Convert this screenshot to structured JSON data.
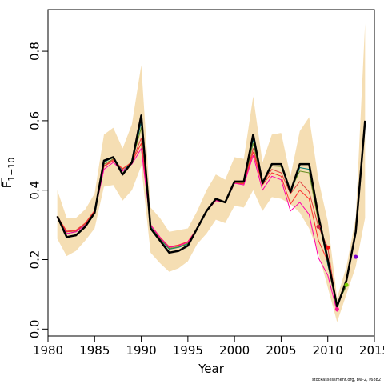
{
  "chart_data": {
    "type": "line",
    "xlabel": "Year",
    "ylabel": "F",
    "ylabel_sub": "1−10",
    "xlim": [
      1980,
      2015
    ],
    "ylim": [
      -0.02,
      0.92
    ],
    "xticks": [
      1980,
      1985,
      1990,
      1995,
      2000,
      2005,
      2010,
      2015
    ],
    "yticks": [
      0.0,
      0.2,
      0.4,
      0.6,
      0.8
    ],
    "ytick_labels": [
      "0.0",
      "0.2",
      "0.4",
      "0.6",
      "0.8"
    ],
    "band": {
      "color": "#f5deb3",
      "x": [
        1981,
        1982,
        1983,
        1984,
        1985,
        1986,
        1987,
        1988,
        1989,
        1990,
        1991,
        1992,
        1993,
        1994,
        1995,
        1996,
        1997,
        1998,
        1999,
        2000,
        2001,
        2002,
        2003,
        2004,
        2005,
        2006,
        2007,
        2008,
        2009,
        2010,
        2011,
        2012,
        2013,
        2014
      ],
      "lower": [
        0.26,
        0.21,
        0.225,
        0.255,
        0.29,
        0.41,
        0.415,
        0.37,
        0.4,
        0.47,
        0.22,
        0.19,
        0.165,
        0.175,
        0.195,
        0.245,
        0.275,
        0.315,
        0.305,
        0.355,
        0.35,
        0.4,
        0.34,
        0.38,
        0.375,
        0.36,
        0.335,
        0.29,
        0.22,
        0.12,
        0.02,
        0.1,
        0.18,
        0.32
      ],
      "upper": [
        0.4,
        0.32,
        0.32,
        0.345,
        0.39,
        0.56,
        0.58,
        0.52,
        0.59,
        0.76,
        0.35,
        0.32,
        0.28,
        0.285,
        0.29,
        0.34,
        0.4,
        0.445,
        0.43,
        0.495,
        0.49,
        0.67,
        0.48,
        0.56,
        0.565,
        0.44,
        0.57,
        0.61,
        0.43,
        0.31,
        0.09,
        0.18,
        0.32,
        0.88
      ]
    },
    "series": [
      {
        "color": "#000000",
        "width": 2.5,
        "x": [
          1981,
          1982,
          1983,
          1984,
          1985,
          1986,
          1987,
          1988,
          1989,
          1990,
          1991,
          1992,
          1993,
          1994,
          1995,
          1996,
          1997,
          1998,
          1999,
          2000,
          2001,
          2002,
          2003,
          2004,
          2005,
          2006,
          2007,
          2008,
          2009,
          2010,
          2011,
          2012,
          2013,
          2014
        ],
        "values": [
          0.325,
          0.265,
          0.27,
          0.295,
          0.335,
          0.485,
          0.495,
          0.445,
          0.48,
          0.615,
          0.29,
          0.255,
          0.22,
          0.225,
          0.24,
          0.29,
          0.34,
          0.375,
          0.365,
          0.425,
          0.425,
          0.56,
          0.42,
          0.475,
          0.475,
          0.395,
          0.475,
          0.475,
          0.325,
          0.2,
          0.065,
          0.14,
          0.28,
          0.6
        ]
      },
      {
        "color": "#008080",
        "width": 1,
        "x": [
          1981,
          1982,
          1983,
          1984,
          1985,
          1986,
          1987,
          1988,
          1989,
          1990,
          1991,
          1992,
          1993,
          1994,
          1995,
          1996,
          1997,
          1998,
          1999,
          2000,
          2001,
          2002,
          2003,
          2004,
          2005,
          2006,
          2007,
          2008,
          2009,
          2010,
          2011,
          2012
        ],
        "values": [
          0.325,
          0.275,
          0.28,
          0.3,
          0.34,
          0.48,
          0.495,
          0.455,
          0.48,
          0.595,
          0.295,
          0.26,
          0.23,
          0.235,
          0.245,
          0.29,
          0.34,
          0.375,
          0.365,
          0.425,
          0.425,
          0.545,
          0.42,
          0.475,
          0.475,
          0.39,
          0.465,
          0.46,
          0.325,
          0.185,
          0.07,
          0.125
        ]
      },
      {
        "color": "#6b8e23",
        "width": 1,
        "x": [
          1981,
          1982,
          1983,
          1984,
          1985,
          1986,
          1987,
          1988,
          1989,
          1990,
          1991,
          1992,
          1993,
          1994,
          1995,
          1996,
          1997,
          1998,
          1999,
          2000,
          2001,
          2002,
          2003,
          2004,
          2005,
          2006,
          2007,
          2008,
          2009,
          2010,
          2011,
          2012
        ],
        "values": [
          0.325,
          0.28,
          0.282,
          0.302,
          0.34,
          0.475,
          0.49,
          0.46,
          0.482,
          0.58,
          0.3,
          0.262,
          0.232,
          0.237,
          0.247,
          0.292,
          0.342,
          0.372,
          0.365,
          0.422,
          0.422,
          0.535,
          0.42,
          0.47,
          0.468,
          0.4,
          0.455,
          0.45,
          0.31,
          0.2,
          0.07,
          0.125
        ]
      },
      {
        "color": "#e04040",
        "width": 1,
        "x": [
          1981,
          1982,
          1983,
          1984,
          1985,
          1986,
          1987,
          1988,
          1989,
          1990,
          1991,
          1992,
          1993,
          1994,
          1995,
          1996,
          1997,
          1998,
          1999,
          2000,
          2001,
          2002,
          2003,
          2004,
          2005,
          2006,
          2007,
          2008,
          2009,
          2010,
          2011
        ],
        "values": [
          0.325,
          0.282,
          0.285,
          0.305,
          0.342,
          0.47,
          0.488,
          0.46,
          0.482,
          0.55,
          0.3,
          0.262,
          0.235,
          0.24,
          0.25,
          0.29,
          0.34,
          0.37,
          0.365,
          0.42,
          0.42,
          0.52,
          0.42,
          0.46,
          0.45,
          0.39,
          0.425,
          0.395,
          0.295,
          0.235,
          0.06
        ]
      },
      {
        "color": "#ff3030",
        "width": 1,
        "x": [
          1981,
          1982,
          1983,
          1984,
          1985,
          1986,
          1987,
          1988,
          1989,
          1990,
          1991,
          1992,
          1993,
          1994,
          1995,
          1996,
          1997,
          1998,
          1999,
          2000,
          2001,
          2002,
          2003,
          2004,
          2005,
          2006,
          2007,
          2008,
          2009,
          2010,
          2011
        ],
        "values": [
          0.325,
          0.28,
          0.283,
          0.305,
          0.34,
          0.468,
          0.485,
          0.462,
          0.48,
          0.535,
          0.3,
          0.265,
          0.237,
          0.242,
          0.252,
          0.29,
          0.34,
          0.37,
          0.365,
          0.42,
          0.418,
          0.51,
          0.415,
          0.45,
          0.44,
          0.36,
          0.4,
          0.375,
          0.255,
          0.195,
          0.055
        ]
      },
      {
        "color": "#ff00aa",
        "width": 1,
        "x": [
          1981,
          1982,
          1983,
          1984,
          1985,
          1986,
          1987,
          1988,
          1989,
          1990,
          1991,
          1992,
          1993,
          1994,
          1995,
          1996,
          1997,
          1998,
          1999,
          2000,
          2001,
          2002,
          2003,
          2004,
          2005,
          2006,
          2007,
          2008,
          2009,
          2010,
          2011
        ],
        "values": [
          0.32,
          0.275,
          0.28,
          0.3,
          0.335,
          0.46,
          0.48,
          0.455,
          0.475,
          0.52,
          0.3,
          0.265,
          0.235,
          0.24,
          0.25,
          0.29,
          0.34,
          0.37,
          0.365,
          0.42,
          0.415,
          0.5,
          0.4,
          0.44,
          0.43,
          0.34,
          0.365,
          0.33,
          0.205,
          0.155,
          0.05
        ]
      }
    ],
    "points": [
      {
        "x": 2009,
        "y": 0.295,
        "color": "#cc2244"
      },
      {
        "x": 2010,
        "y": 0.235,
        "color": "#ee1111"
      },
      {
        "x": 2011,
        "y": 0.057,
        "color": "#ff1493"
      },
      {
        "x": 2012,
        "y": 0.127,
        "color": "#7ccd00"
      },
      {
        "x": 2013,
        "y": 0.208,
        "color": "#7a00cc"
      }
    ]
  },
  "credit": "stockassessment.org, bw-2, r6882"
}
